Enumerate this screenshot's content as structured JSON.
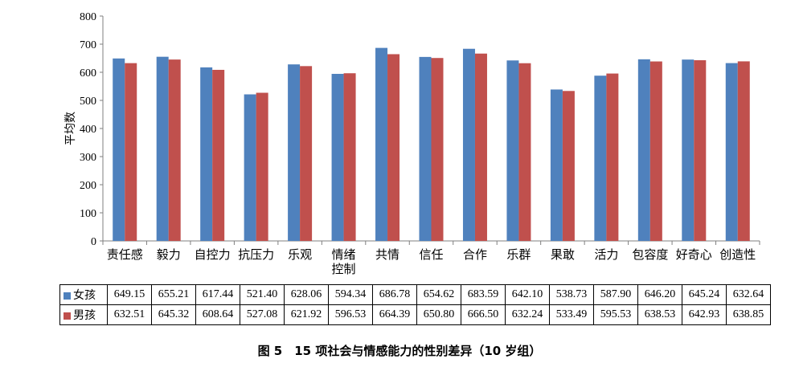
{
  "caption": "图 5　15 项社会与情感能力的性别差异（10 岁组）",
  "chart_data": {
    "type": "bar",
    "ylabel": "平均数",
    "ylim": [
      0,
      800
    ],
    "yticks": [
      0,
      100,
      200,
      300,
      400,
      500,
      600,
      700,
      800
    ],
    "categories": [
      "责任感",
      "毅力",
      "自控力",
      "抗压力",
      "乐观",
      "情绪控制",
      "共情",
      "信任",
      "合作",
      "乐群",
      "果敢",
      "活力",
      "包容度",
      "好奇心",
      "创造性"
    ],
    "category_lines": [
      [
        "责任感"
      ],
      [
        "毅力"
      ],
      [
        "自控力"
      ],
      [
        "抗压力"
      ],
      [
        "乐观"
      ],
      [
        "情绪",
        "控制"
      ],
      [
        "共情"
      ],
      [
        "信任"
      ],
      [
        "合作"
      ],
      [
        "乐群"
      ],
      [
        "果敢"
      ],
      [
        "活力"
      ],
      [
        "包容度"
      ],
      [
        "好奇心"
      ],
      [
        "创造性"
      ]
    ],
    "series": [
      {
        "name": "女孩",
        "color": "#4f81bd",
        "values": [
          649.15,
          655.21,
          617.44,
          521.4,
          628.06,
          594.34,
          686.78,
          654.62,
          683.59,
          642.1,
          538.73,
          587.9,
          646.2,
          645.24,
          632.64
        ]
      },
      {
        "name": "男孩",
        "color": "#c0504d",
        "values": [
          632.51,
          645.32,
          608.64,
          527.08,
          621.92,
          596.53,
          664.39,
          650.8,
          666.5,
          632.24,
          533.49,
          595.53,
          638.53,
          642.93,
          638.85
        ]
      }
    ],
    "table": {
      "rows": [
        {
          "label": "女孩",
          "cells": [
            "649.15",
            "655.21",
            "617.44",
            "521.40",
            "628.06",
            "594.34",
            "686.78",
            "654.62",
            "683.59",
            "642.10",
            "538.73",
            "587.90",
            "646.20",
            "645.24",
            "632.64"
          ]
        },
        {
          "label": "男孩",
          "cells": [
            "632.51",
            "645.32",
            "608.64",
            "527.08",
            "621.92",
            "596.53",
            "664.39",
            "650.80",
            "666.50",
            "632.24",
            "533.49",
            "595.53",
            "638.53",
            "642.93",
            "638.85"
          ]
        }
      ]
    },
    "grid": false,
    "legend": "table-left"
  }
}
